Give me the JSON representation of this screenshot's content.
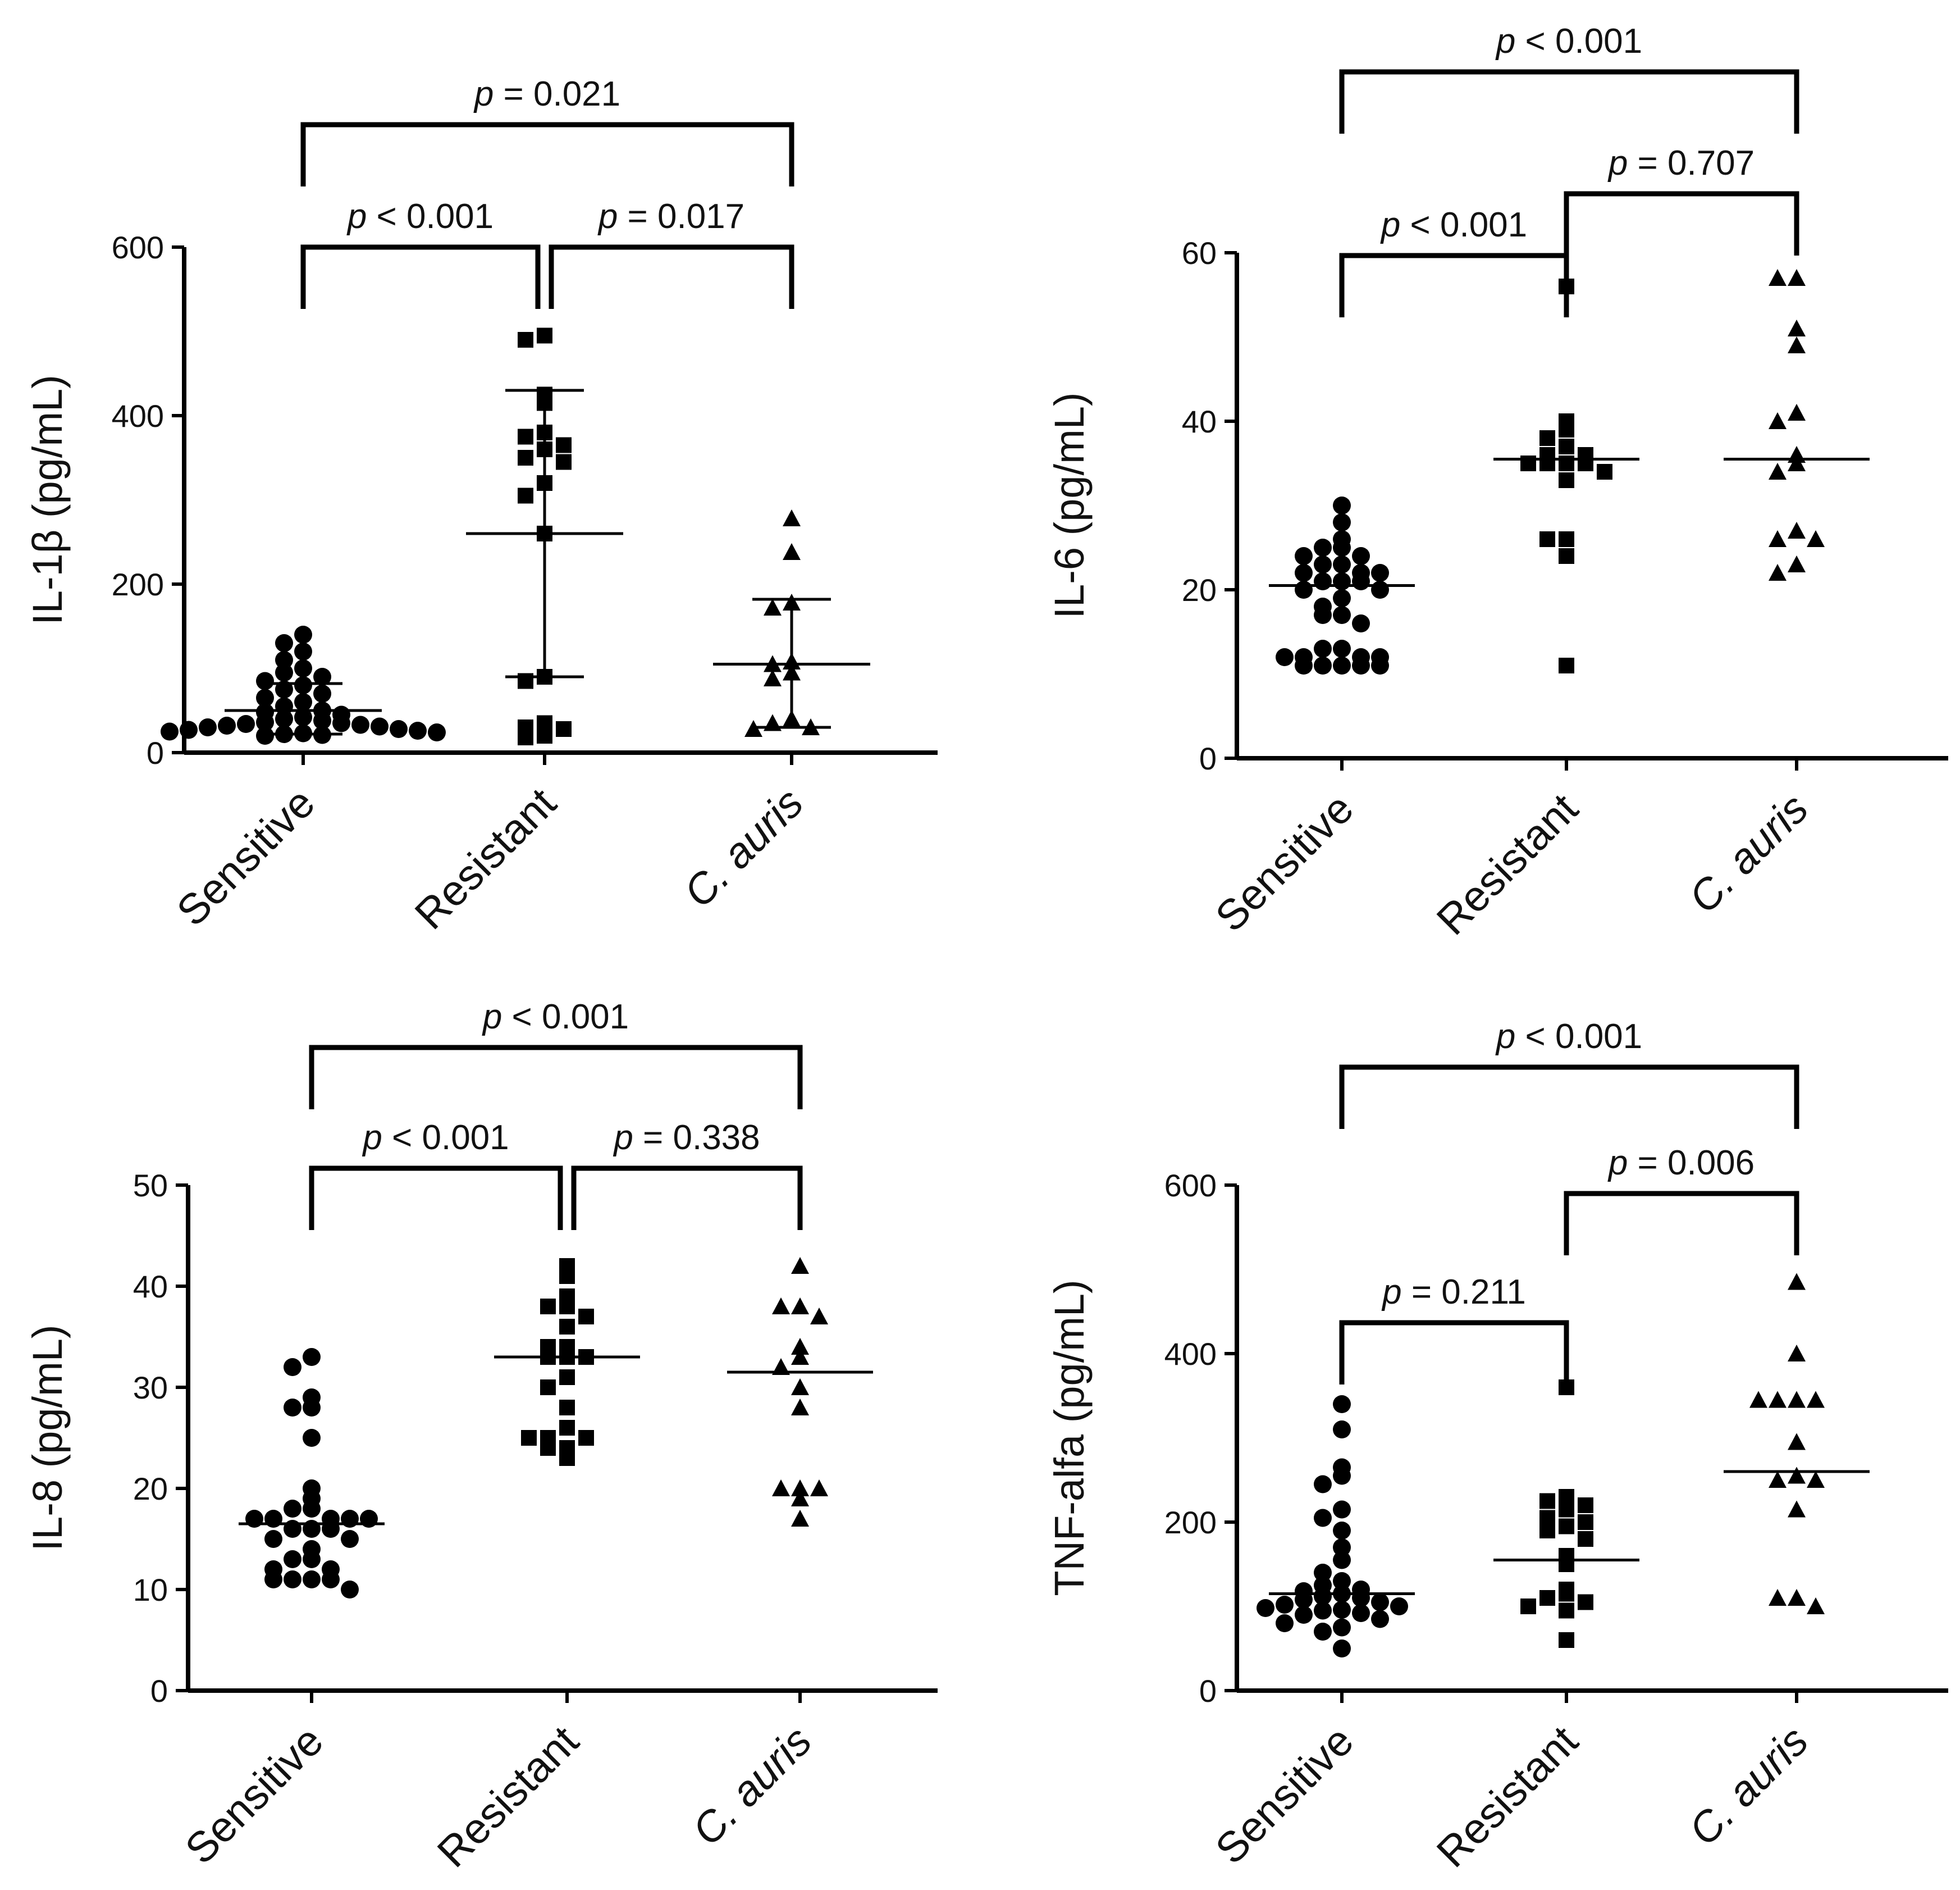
{
  "chart_data": [
    {
      "type": "scatter",
      "id": "il1b",
      "ylabel": "IL-1β (pg/mL)",
      "ylim": [
        0,
        600
      ],
      "yticks": [
        0,
        200,
        400,
        600
      ],
      "categories": [
        "Sensitive",
        "Resistant",
        "C. auris"
      ],
      "groups": [
        {
          "name": "Sensitive",
          "marker": "circle",
          "center": 50,
          "error": [
            22,
            82
          ],
          "values": [
            140,
            130,
            120,
            110,
            100,
            95,
            90,
            85,
            80,
            75,
            70,
            65,
            60,
            55,
            50,
            48,
            45,
            42,
            40,
            38,
            36,
            35,
            34,
            33,
            32,
            31,
            30,
            28,
            27,
            26,
            25,
            24,
            23,
            22,
            21,
            20
          ]
        },
        {
          "name": "Resistant",
          "marker": "square",
          "center": 260,
          "error": [
            90,
            430
          ],
          "values": [
            495,
            490,
            425,
            415,
            380,
            375,
            365,
            360,
            350,
            345,
            320,
            305,
            260,
            90,
            85,
            35,
            30,
            28,
            20,
            18
          ]
        },
        {
          "name": "C. auris",
          "marker": "triangle",
          "center": 105,
          "error": [
            30,
            182
          ],
          "values": [
            278,
            238,
            178,
            172,
            108,
            105,
            95,
            88,
            40,
            35,
            30,
            28
          ]
        }
      ],
      "comparisons": [
        {
          "from": 0,
          "to": 2,
          "label": "p = 0.021",
          "level": 2
        },
        {
          "from": 0,
          "to": 1,
          "label": "p < 0.001",
          "level": 1
        },
        {
          "from": 1,
          "to": 2,
          "label": "p = 0.017",
          "level": 1
        }
      ]
    },
    {
      "type": "scatter",
      "id": "il6",
      "ylabel": "IL-6 (pg/mL)",
      "ylim": [
        0,
        60
      ],
      "yticks": [
        0,
        20,
        40,
        60
      ],
      "categories": [
        "Sensitive",
        "Resistant",
        "C. auris"
      ],
      "groups": [
        {
          "name": "Sensitive",
          "marker": "circle",
          "center": 20.5,
          "values": [
            30,
            28,
            26,
            25,
            25,
            24,
            24,
            23,
            23,
            22,
            22,
            22,
            21,
            21,
            21,
            20,
            20,
            19,
            18,
            17,
            17,
            16,
            13,
            13,
            12,
            12,
            12,
            12,
            11,
            11,
            11,
            11,
            11
          ]
        },
        {
          "name": "Resistant",
          "marker": "square",
          "center": 35.5,
          "values": [
            56,
            40,
            39,
            38,
            37,
            36,
            36,
            35,
            35,
            35,
            35,
            34,
            33,
            26,
            26,
            24,
            11
          ]
        },
        {
          "name": "C. auris",
          "marker": "triangle",
          "center": 35.5,
          "values": [
            57,
            57,
            51,
            49,
            41,
            40,
            36,
            35,
            34,
            27,
            26,
            26,
            23,
            22
          ]
        }
      ],
      "comparisons": [
        {
          "from": 0,
          "to": 2,
          "label": "p < 0.001",
          "level": 3
        },
        {
          "from": 1,
          "to": 2,
          "label": "p = 0.707",
          "level": 2
        },
        {
          "from": 0,
          "to": 1,
          "label": "p < 0.001",
          "level": 1
        }
      ]
    },
    {
      "type": "scatter",
      "id": "il8",
      "ylabel": "IL-8 (pg/mL)",
      "ylim": [
        0,
        50
      ],
      "yticks": [
        0,
        10,
        20,
        30,
        40,
        50
      ],
      "categories": [
        "Sensitive",
        "Resistant",
        "C. auris"
      ],
      "groups": [
        {
          "name": "Sensitive",
          "marker": "circle",
          "center": 16.5,
          "values": [
            33,
            32,
            29,
            28,
            28,
            25,
            20,
            19,
            18,
            18,
            17,
            17,
            17,
            17,
            17,
            16,
            16,
            16,
            15,
            15,
            14,
            13,
            13,
            12,
            12,
            11,
            11,
            11,
            11,
            10
          ]
        },
        {
          "name": "Resistant",
          "marker": "square",
          "center": 33,
          "values": [
            42,
            41,
            39,
            38,
            38,
            37,
            36,
            34,
            34,
            33,
            33,
            33,
            31,
            30,
            28,
            26,
            25,
            25,
            25,
            24,
            24,
            23
          ]
        },
        {
          "name": "C. auris",
          "marker": "triangle",
          "center": 31.5,
          "values": [
            42,
            38,
            38,
            37,
            34,
            33,
            32,
            30,
            28,
            20,
            20,
            20,
            19,
            17
          ]
        }
      ],
      "comparisons": [
        {
          "from": 0,
          "to": 2,
          "label": "p < 0.001",
          "level": 2
        },
        {
          "from": 0,
          "to": 1,
          "label": "p < 0.001",
          "level": 1
        },
        {
          "from": 1,
          "to": 2,
          "label": "p = 0.338",
          "level": 1
        }
      ]
    },
    {
      "type": "scatter",
      "id": "tnf",
      "ylabel": "TNF-alfa (pg/mL)",
      "ylim": [
        0,
        600
      ],
      "yticks": [
        0,
        200,
        400,
        600
      ],
      "categories": [
        "Sensitive",
        "Resistant",
        "C. auris"
      ],
      "groups": [
        {
          "name": "Sensitive",
          "marker": "circle",
          "center": 115,
          "values": [
            340,
            310,
            265,
            255,
            245,
            215,
            205,
            190,
            170,
            155,
            140,
            130,
            125,
            120,
            118,
            115,
            112,
            110,
            108,
            105,
            102,
            100,
            98,
            96,
            95,
            92,
            90,
            85,
            80,
            75,
            70,
            50
          ]
        },
        {
          "name": "Resistant",
          "marker": "square",
          "center": 155,
          "values": [
            360,
            230,
            225,
            220,
            215,
            205,
            200,
            195,
            190,
            180,
            160,
            150,
            120,
            115,
            110,
            105,
            100,
            95,
            60
          ]
        },
        {
          "name": "C. auris",
          "marker": "triangle",
          "center": 260,
          "values": [
            485,
            400,
            345,
            345,
            345,
            345,
            295,
            255,
            250,
            250,
            215,
            110,
            110,
            100
          ]
        }
      ],
      "comparisons": [
        {
          "from": 0,
          "to": 2,
          "label": "p < 0.001",
          "level": 3
        },
        {
          "from": 1,
          "to": 2,
          "label": "p = 0.006",
          "level": 2
        },
        {
          "from": 0,
          "to": 1,
          "label": "p = 0.211",
          "level": 1
        }
      ]
    }
  ]
}
